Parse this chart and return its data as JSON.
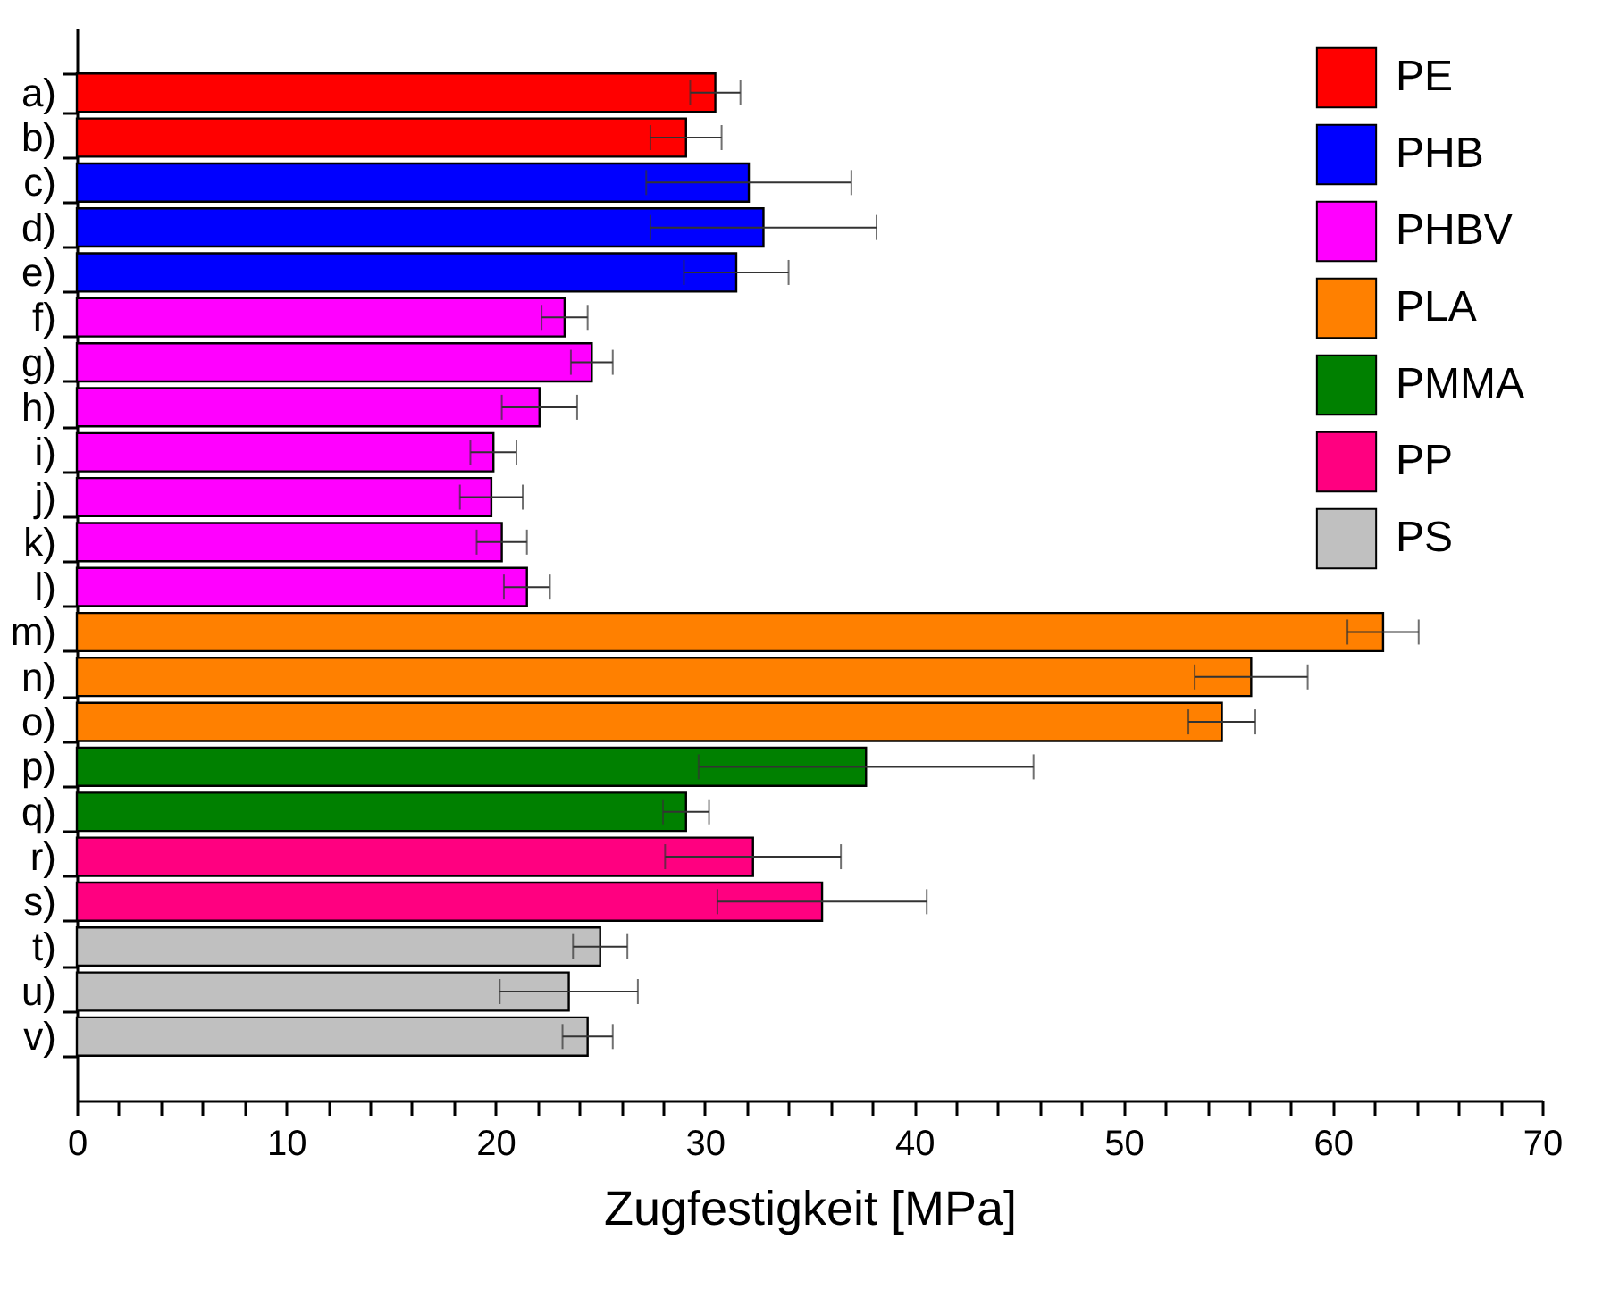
{
  "chart_data": {
    "type": "bar",
    "orientation": "horizontal",
    "xlabel": "Zugfestigkeit [MPa]",
    "categories": [
      "a)",
      "b)",
      "c)",
      "d)",
      "e)",
      "f)",
      "g)",
      "h)",
      "i)",
      "j)",
      "k)",
      "l)",
      "m)",
      "n)",
      "o)",
      "p)",
      "q)",
      "r)",
      "s)",
      "t)",
      "u)",
      "v)"
    ],
    "series": [
      {
        "name": "PE",
        "color": "#ff0000",
        "values": [
          30.5,
          29.1,
          null,
          null,
          null,
          null,
          null,
          null,
          null,
          null,
          null,
          null,
          null,
          null,
          null,
          null,
          null,
          null,
          null,
          null,
          null,
          null
        ],
        "errors": [
          1.2,
          1.7,
          null,
          null,
          null,
          null,
          null,
          null,
          null,
          null,
          null,
          null,
          null,
          null,
          null,
          null,
          null,
          null,
          null,
          null,
          null,
          null
        ]
      },
      {
        "name": "PHB",
        "color": "#0000ff",
        "values": [
          null,
          null,
          32.1,
          32.8,
          31.5,
          null,
          null,
          null,
          null,
          null,
          null,
          null,
          null,
          null,
          null,
          null,
          null,
          null,
          null,
          null,
          null,
          null
        ],
        "errors": [
          null,
          null,
          4.9,
          5.4,
          2.5,
          null,
          null,
          null,
          null,
          null,
          null,
          null,
          null,
          null,
          null,
          null,
          null,
          null,
          null,
          null,
          null,
          null
        ]
      },
      {
        "name": "PHBV",
        "color": "#ff00ff",
        "values": [
          null,
          null,
          null,
          null,
          null,
          23.3,
          24.6,
          22.1,
          19.9,
          19.8,
          20.3,
          21.5,
          null,
          null,
          null,
          null,
          null,
          null,
          null,
          null,
          null,
          null
        ],
        "errors": [
          null,
          null,
          null,
          null,
          null,
          1.1,
          1.0,
          1.8,
          1.1,
          1.5,
          1.2,
          1.1,
          null,
          null,
          null,
          null,
          null,
          null,
          null,
          null,
          null,
          null
        ]
      },
      {
        "name": "PLA",
        "color": "#ff8000",
        "values": [
          null,
          null,
          null,
          null,
          null,
          null,
          null,
          null,
          null,
          null,
          null,
          null,
          62.4,
          56.1,
          54.7,
          null,
          null,
          null,
          null,
          null,
          null,
          null
        ],
        "errors": [
          null,
          null,
          null,
          null,
          null,
          null,
          null,
          null,
          null,
          null,
          null,
          null,
          1.7,
          2.7,
          1.6,
          null,
          null,
          null,
          null,
          null,
          null,
          null
        ]
      },
      {
        "name": "PMMA",
        "color": "#008000",
        "values": [
          null,
          null,
          null,
          null,
          null,
          null,
          null,
          null,
          null,
          null,
          null,
          null,
          null,
          null,
          null,
          37.7,
          29.1,
          null,
          null,
          null,
          null,
          null
        ],
        "errors": [
          null,
          null,
          null,
          null,
          null,
          null,
          null,
          null,
          null,
          null,
          null,
          null,
          null,
          null,
          null,
          8.0,
          1.1,
          null,
          null,
          null,
          null,
          null
        ]
      },
      {
        "name": "PP",
        "color": "#ff0080",
        "values": [
          null,
          null,
          null,
          null,
          null,
          null,
          null,
          null,
          null,
          null,
          null,
          null,
          null,
          null,
          null,
          null,
          null,
          32.3,
          35.6,
          null,
          null,
          null
        ],
        "errors": [
          null,
          null,
          null,
          null,
          null,
          null,
          null,
          null,
          null,
          null,
          null,
          null,
          null,
          null,
          null,
          null,
          null,
          4.2,
          5.0,
          null,
          null,
          null
        ]
      },
      {
        "name": "PS",
        "color": "#c0c0c0",
        "values": [
          null,
          null,
          null,
          null,
          null,
          null,
          null,
          null,
          null,
          null,
          null,
          null,
          null,
          null,
          null,
          null,
          null,
          null,
          null,
          25.0,
          23.5,
          24.4
        ],
        "errors": [
          null,
          null,
          null,
          null,
          null,
          null,
          null,
          null,
          null,
          null,
          null,
          null,
          null,
          null,
          null,
          null,
          null,
          null,
          null,
          1.3,
          3.3,
          1.2
        ]
      }
    ],
    "xlim": [
      0,
      70
    ],
    "xticks": [
      0,
      {
        "value": 2,
        "label": null
      },
      {
        "value": 4,
        "label": null
      },
      {
        "value": 6,
        "label": null
      },
      {
        "value": 8,
        "label": null
      },
      10,
      {
        "value": 12,
        "label": null
      },
      {
        "value": 14,
        "label": null
      },
      {
        "value": 16,
        "label": null
      },
      {
        "value": 18,
        "label": null
      },
      20,
      {
        "value": 22,
        "label": null
      },
      {
        "value": 24,
        "label": null
      },
      {
        "value": 26,
        "label": null
      },
      {
        "value": 28,
        "label": null
      },
      30,
      {
        "value": 32,
        "label": null
      },
      {
        "value": 34,
        "label": null
      },
      {
        "value": 36,
        "label": null
      },
      {
        "value": 38,
        "label": null
      },
      40,
      {
        "value": 42,
        "label": null
      },
      {
        "value": 44,
        "label": null
      },
      {
        "value": 46,
        "label": null
      },
      {
        "value": 48,
        "label": null
      },
      50,
      {
        "value": 52,
        "label": null
      },
      {
        "value": 54,
        "label": null
      },
      {
        "value": 56,
        "label": null
      },
      {
        "value": 58,
        "label": null
      },
      60,
      {
        "value": 62,
        "label": null
      },
      {
        "value": 64,
        "label": null
      },
      {
        "value": 66,
        "label": null
      },
      {
        "value": 68,
        "label": null
      },
      70
    ],
    "grid": false,
    "legend": "top right"
  }
}
